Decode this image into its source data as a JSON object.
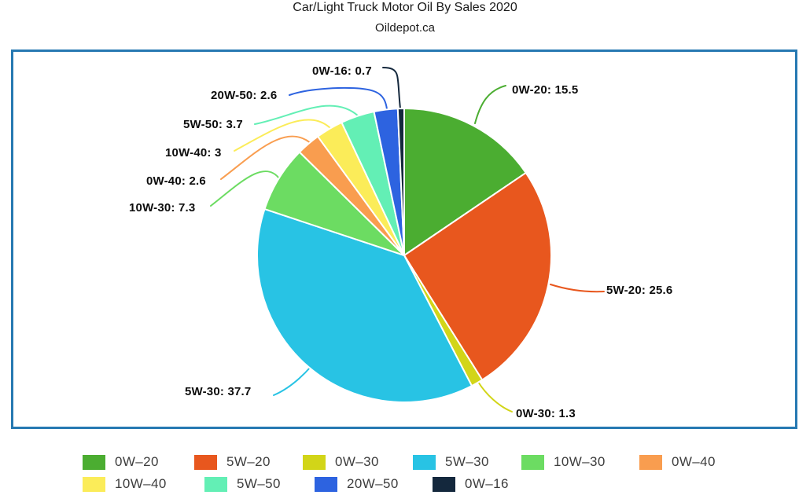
{
  "chart_data": {
    "type": "pie",
    "title": "Car/Light Truck Motor Oil By Sales 2020",
    "subtitle": "Oildepot.ca",
    "direction": "clockwise",
    "start_angle": "12-oclock",
    "annotation_format": "{label}: {value}",
    "legend_position": "bottom",
    "slices": [
      {
        "label": "0W-20",
        "legend_label": "0W–20",
        "value": 15.5,
        "color": "#4bad31"
      },
      {
        "label": "5W-20",
        "legend_label": "5W–20",
        "value": 25.6,
        "color": "#e8571e"
      },
      {
        "label": "0W-30",
        "legend_label": "0W–30",
        "value": 1.3,
        "color": "#d2d518"
      },
      {
        "label": "5W-30",
        "legend_label": "5W–30",
        "value": 37.7,
        "color": "#28c3e4"
      },
      {
        "label": "10W-30",
        "legend_label": "10W–30",
        "value": 7.3,
        "color": "#6cdc62"
      },
      {
        "label": "0W-40",
        "legend_label": "0W–40",
        "value": 2.6,
        "color": "#f99d4f"
      },
      {
        "label": "10W-40",
        "legend_label": "10W–40",
        "value": 3,
        "color": "#fbec59"
      },
      {
        "label": "5W-50",
        "legend_label": "5W–50",
        "value": 3.7,
        "color": "#63efb5"
      },
      {
        "label": "20W-50",
        "legend_label": "20W–50",
        "value": 2.6,
        "color": "#2d63e0"
      },
      {
        "label": "0W-16",
        "legend_label": "0W–16",
        "value": 0.7,
        "color": "#14283d"
      }
    ]
  },
  "style": {
    "frame_border_color": "#2679b2",
    "label_text_color": "#0d0d0d",
    "legend_text_color": "#3d3d3d"
  }
}
